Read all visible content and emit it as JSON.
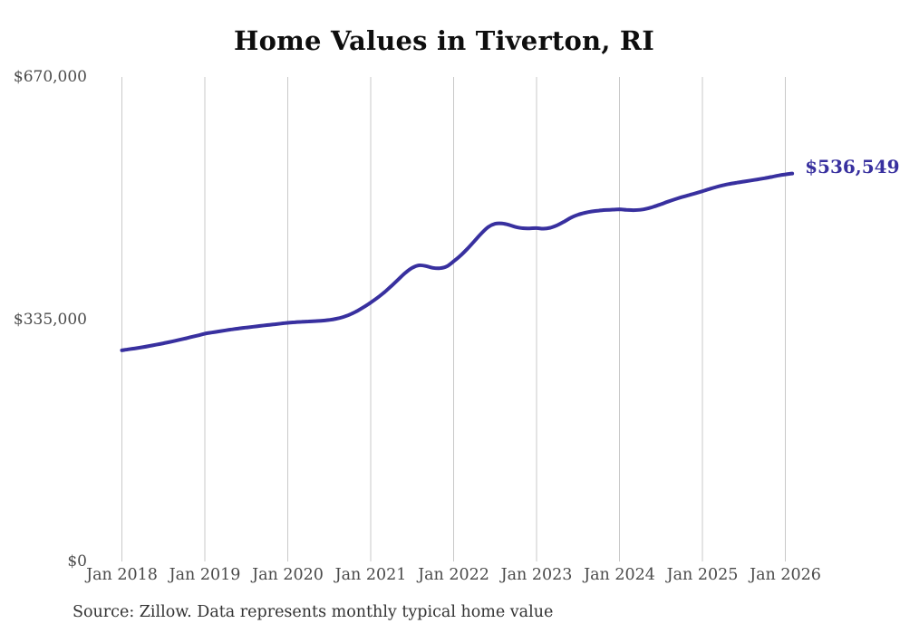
{
  "page": {
    "background_color": "#ffffff",
    "grid_color": "#c9c9c9",
    "tick_label_color": "#4a4a4a"
  },
  "chart_data": {
    "type": "line",
    "title": "Home Values in Tiverton, RI",
    "source": "Source: Zillow. Data represents monthly typical home value",
    "end_label": "$536,549",
    "line_color": "#38309f",
    "xlabel": "",
    "ylabel": "",
    "ylim": [
      0,
      670000
    ],
    "grid": "vertical-only",
    "legend": "none",
    "y_ticks": [
      {
        "value": 0,
        "label": "$0"
      },
      {
        "value": 335000,
        "label": "$335,000"
      },
      {
        "value": 670000,
        "label": "$670,000"
      }
    ],
    "x_ticks": [
      {
        "month_index": 0,
        "label": "Jan 2018"
      },
      {
        "month_index": 12,
        "label": "Jan 2019"
      },
      {
        "month_index": 24,
        "label": "Jan 2020"
      },
      {
        "month_index": 36,
        "label": "Jan 2021"
      },
      {
        "month_index": 48,
        "label": "Jan 2022"
      },
      {
        "month_index": 60,
        "label": "Jan 2023"
      },
      {
        "month_index": 72,
        "label": "Jan 2024"
      },
      {
        "month_index": 84,
        "label": "Jan 2025"
      },
      {
        "month_index": 96,
        "label": "Jan 2026"
      }
    ],
    "series": [
      {
        "name": "Typical home value",
        "x": [
          "2018-01",
          "2018-02",
          "2018-03",
          "2018-04",
          "2018-05",
          "2018-06",
          "2018-07",
          "2018-08",
          "2018-09",
          "2018-10",
          "2018-11",
          "2018-12",
          "2019-01",
          "2019-02",
          "2019-03",
          "2019-04",
          "2019-05",
          "2019-06",
          "2019-07",
          "2019-08",
          "2019-09",
          "2019-10",
          "2019-11",
          "2019-12",
          "2020-01",
          "2020-02",
          "2020-03",
          "2020-04",
          "2020-05",
          "2020-06",
          "2020-07",
          "2020-08",
          "2020-09",
          "2020-10",
          "2020-11",
          "2020-12",
          "2021-01",
          "2021-02",
          "2021-03",
          "2021-04",
          "2021-05",
          "2021-06",
          "2021-07",
          "2021-08",
          "2021-09",
          "2021-10",
          "2021-11",
          "2021-12",
          "2022-01",
          "2022-02",
          "2022-03",
          "2022-04",
          "2022-05",
          "2022-06",
          "2022-07",
          "2022-08",
          "2022-09",
          "2022-10",
          "2022-11",
          "2022-12",
          "2023-01",
          "2023-02",
          "2023-03",
          "2023-04",
          "2023-05",
          "2023-06",
          "2023-07",
          "2023-08",
          "2023-09",
          "2023-10",
          "2023-11",
          "2023-12",
          "2024-01",
          "2024-02",
          "2024-03",
          "2024-04",
          "2024-05",
          "2024-06",
          "2024-07",
          "2024-08",
          "2024-09",
          "2024-10",
          "2024-11",
          "2024-12",
          "2025-01",
          "2025-02",
          "2025-03",
          "2025-04",
          "2025-05",
          "2025-06",
          "2025-07",
          "2025-08",
          "2025-09",
          "2025-10",
          "2025-11",
          "2025-12",
          "2026-01",
          "2026-02"
        ],
        "values": [
          292000,
          293400,
          294800,
          296300,
          298000,
          299800,
          301700,
          303700,
          305800,
          308000,
          310300,
          312600,
          315000,
          316600,
          318100,
          319600,
          321000,
          322300,
          323500,
          324600,
          325700,
          326800,
          327900,
          329000,
          330000,
          330800,
          331400,
          331900,
          332400,
          333000,
          334000,
          335600,
          338000,
          341500,
          346200,
          351800,
          358000,
          364800,
          372500,
          381000,
          390000,
          399000,
          406000,
          409500,
          408500,
          406000,
          405500,
          408000,
          415000,
          423000,
          432500,
          443000,
          453500,
          462500,
          467000,
          467500,
          465500,
          462500,
          460800,
          460600,
          461000,
          460200,
          461500,
          465000,
          470000,
          475500,
          479500,
          482200,
          484000,
          485200,
          486000,
          486500,
          487000,
          486200,
          485800,
          486300,
          488000,
          490800,
          494000,
          497500,
          500800,
          503800,
          506500,
          509200,
          512000,
          515000,
          517800,
          520200,
          522200,
          523900,
          525400,
          526900,
          528400,
          530000,
          531800,
          533800,
          535300,
          536549
        ]
      }
    ],
    "final_value": 536549
  }
}
